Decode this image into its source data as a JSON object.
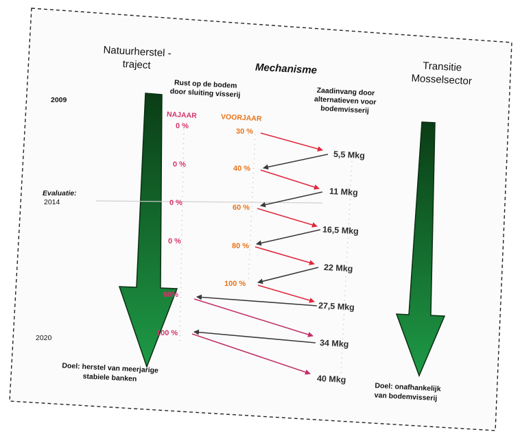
{
  "headers": {
    "left": [
      "Natuurherstel -",
      "traject"
    ],
    "middle": "Mechanisme",
    "right": [
      "Transitie",
      "Mosselsector"
    ]
  },
  "subheaders": {
    "rust": [
      "Rust op de bodem",
      "door sluiting visserij"
    ],
    "zaad": [
      "Zaadinvang door",
      "alternatieven voor",
      "bodemvisserij"
    ]
  },
  "column_labels": {
    "najaar": "NAJAAR",
    "voorjaar": "VOORJAAR"
  },
  "years": {
    "start": "2009",
    "eval_label": "Evaluatie:",
    "eval_year": "2014",
    "end": "2020"
  },
  "najaar_values": [
    "0 %",
    "0 %",
    "0 %",
    "0 %",
    "60%",
    "100 %"
  ],
  "voorjaar_values": [
    "30 %",
    "40 %",
    "60 %",
    "80 %",
    "100 %"
  ],
  "mkg_values": [
    "5,5 Mkg",
    "11 Mkg",
    "16,5 Mkg",
    "22 Mkg",
    "27,5 Mkg",
    "34 Mkg",
    "40 Mkg"
  ],
  "goals": {
    "left": [
      "Doel: herstel van meerjarige",
      "stabiele banken"
    ],
    "right": [
      "Doel: onafhankelijk",
      "van bodemvisserij"
    ]
  },
  "colors": {
    "arrow_green_dark": "#0b3d16",
    "arrow_green_light": "#1e9a46",
    "red_arrow": "#e0283c",
    "gray_arrow": "#4a4a4a",
    "magenta_line": "#c0306a",
    "pink_text": "#d6336c",
    "orange_text": "#e8741a"
  }
}
